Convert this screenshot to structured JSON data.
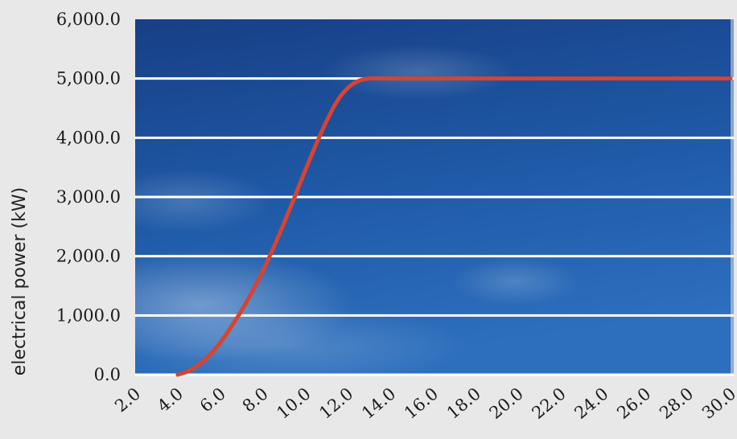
{
  "chart_data": {
    "type": "line",
    "title": "",
    "xlabel": "",
    "ylabel": "electrical power (kW)",
    "xlim": [
      2,
      30
    ],
    "ylim": [
      0,
      6000
    ],
    "x_ticks": [
      "2.0",
      "4.0",
      "6.0",
      "8.0",
      "10.0",
      "12.0",
      "14.0",
      "16.0",
      "18.0",
      "20.0",
      "22.0",
      "24.0",
      "26.0",
      "28.0",
      "30.0"
    ],
    "y_ticks": [
      "0.0",
      "1,000.0",
      "2,000.0",
      "3,000.0",
      "4,000.0",
      "5,000.0",
      "6,000.0"
    ],
    "grid": true,
    "series": [
      {
        "color": "#d9432f",
        "x": [
          4.0,
          4.5,
          5.0,
          5.5,
          6.0,
          6.5,
          7.0,
          7.5,
          8.0,
          8.5,
          9.0,
          9.5,
          10.0,
          10.5,
          11.0,
          11.5,
          12.0,
          12.5,
          13.0,
          13.5,
          14.0,
          16.0,
          18.0,
          20.0,
          22.0,
          24.0,
          26.0,
          28.0,
          30.0
        ],
        "y": [
          0,
          60,
          170,
          330,
          540,
          800,
          1080,
          1400,
          1750,
          2140,
          2560,
          3000,
          3450,
          3880,
          4280,
          4620,
          4840,
          4960,
          5000,
          5000,
          5000,
          5000,
          5000,
          5000,
          5000,
          5000,
          5000,
          5000,
          5000
        ]
      }
    ]
  },
  "colors": {
    "page_background": "#e8e8e8",
    "plot_sky_top": "#1a4a92",
    "plot_sky_bottom": "#2a6bb8",
    "gridline": "#ffffff",
    "line": "#d9432f"
  }
}
